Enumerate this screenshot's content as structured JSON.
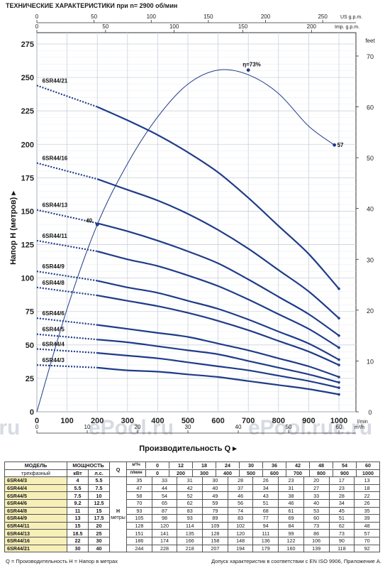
{
  "title": "ТЕХНИЧЕСКИЕ ХАРАКТЕРИСТИКИ при n= 2900 об/мин",
  "chart_data": {
    "type": "line",
    "ylabel": "Напор H (метров)",
    "xlabel": "Производительность Q",
    "y_left": {
      "min": 0,
      "max": 275,
      "ticks": [
        0,
        25,
        50,
        75,
        100,
        125,
        150,
        175,
        200,
        225,
        250,
        275
      ]
    },
    "y_right": {
      "unit": "feet",
      "ticks": [
        0,
        10,
        20,
        30,
        40,
        50,
        60,
        70
      ]
    },
    "x_lmin": {
      "unit": "l/min",
      "min": 0,
      "max": 1000,
      "ticks": [
        0,
        100,
        200,
        300,
        400,
        500,
        600,
        700,
        800,
        900,
        1000
      ]
    },
    "x_m3h": {
      "unit": "m³/h",
      "ticks": [
        0,
        10,
        20,
        30,
        40,
        50,
        60
      ]
    },
    "x_us": {
      "unit": "US g.p.m.",
      "ticks": [
        0,
        50,
        100,
        150,
        200,
        250
      ]
    },
    "x_imp": {
      "unit": "Imp. g.p.m.",
      "ticks": [
        0,
        50,
        100,
        150,
        200
      ]
    },
    "q_points": [
      0,
      200,
      300,
      400,
      500,
      600,
      700,
      800,
      900,
      1000
    ],
    "series": [
      {
        "name": "6SR44/3",
        "values": [
          35,
          33,
          31,
          30,
          28,
          26,
          23,
          20,
          17,
          13
        ]
      },
      {
        "name": "6SR44/4",
        "values": [
          47,
          44,
          42,
          40,
          37,
          34,
          31,
          27,
          23,
          18
        ]
      },
      {
        "name": "6SR44/5",
        "values": [
          58,
          54,
          52,
          49,
          46,
          43,
          38,
          33,
          28,
          22
        ]
      },
      {
        "name": "6SR44/6",
        "values": [
          70,
          65,
          62,
          59,
          56,
          51,
          46,
          40,
          34,
          26
        ]
      },
      {
        "name": "6SR44/8",
        "values": [
          93,
          87,
          83,
          79,
          74,
          68,
          61,
          53,
          45,
          35
        ]
      },
      {
        "name": "6SR44/9",
        "values": [
          105,
          98,
          93,
          89,
          83,
          77,
          69,
          60,
          51,
          39
        ]
      },
      {
        "name": "6SR44/11",
        "values": [
          128,
          120,
          114,
          109,
          102,
          94,
          84,
          73,
          62,
          48
        ]
      },
      {
        "name": "6SR44/13",
        "values": [
          151,
          141,
          135,
          128,
          120,
          111,
          99,
          86,
          73,
          57
        ]
      },
      {
        "name": "6SR44/16",
        "values": [
          186,
          174,
          166,
          158,
          148,
          136,
          122,
          106,
          90,
          70
        ]
      },
      {
        "name": "6SR44/21",
        "values": [
          244,
          228,
          218,
          207,
          194,
          179,
          160,
          139,
          118,
          92
        ]
      }
    ],
    "efficiency": {
      "q": [
        0,
        100,
        200,
        300,
        400,
        500,
        600,
        700,
        800,
        900,
        985
      ],
      "values": [
        0,
        22,
        40,
        53,
        63,
        70,
        73,
        72,
        68,
        61,
        57
      ],
      "peak_label": "η=73%",
      "labels": [
        "40",
        "57"
      ]
    },
    "watermarks": [
      ".ru",
      "ePool.ru",
      "ePool.ru",
      "e.ru"
    ]
  },
  "table": {
    "headers": {
      "model": "МОДЕЛЬ",
      "power": "МОЩНОСТЬ",
      "three_phase": "трехфазный",
      "kw": "кВт",
      "hp": "л.с.",
      "q": "Q",
      "m3h": "м³/ч",
      "lmin": "л/мин",
      "h": "H",
      "meters": "метры"
    },
    "q_m3h": [
      "0",
      "12",
      "18",
      "24",
      "30",
      "36",
      "42",
      "48",
      "54",
      "60"
    ],
    "q_lmin": [
      "0",
      "200",
      "300",
      "400",
      "500",
      "600",
      "700",
      "800",
      "900",
      "1000"
    ],
    "rows": [
      {
        "model": "6SR44/3",
        "kw": "4",
        "hp": "5.5",
        "h": [
          "35",
          "33",
          "31",
          "30",
          "28",
          "26",
          "23",
          "20",
          "17",
          "13"
        ]
      },
      {
        "model": "6SR44/4",
        "kw": "5.5",
        "hp": "7.5",
        "h": [
          "47",
          "44",
          "42",
          "40",
          "37",
          "34",
          "31",
          "27",
          "23",
          "18"
        ]
      },
      {
        "model": "6SR44/5",
        "kw": "7.5",
        "hp": "10",
        "h": [
          "58",
          "54",
          "52",
          "49",
          "46",
          "43",
          "38",
          "33",
          "28",
          "22"
        ]
      },
      {
        "model": "6SR44/6",
        "kw": "9.2",
        "hp": "12.5",
        "h": [
          "70",
          "65",
          "62",
          "59",
          "56",
          "51",
          "46",
          "40",
          "34",
          "26"
        ]
      },
      {
        "model": "6SR44/8",
        "kw": "11",
        "hp": "15",
        "h": [
          "93",
          "87",
          "83",
          "79",
          "74",
          "68",
          "61",
          "53",
          "45",
          "35"
        ]
      },
      {
        "model": "6SR44/9",
        "kw": "13",
        "hp": "17.5",
        "h": [
          "105",
          "98",
          "93",
          "89",
          "83",
          "77",
          "69",
          "60",
          "51",
          "39"
        ]
      },
      {
        "model": "6SR44/11",
        "kw": "15",
        "hp": "20",
        "h": [
          "128",
          "120",
          "114",
          "109",
          "102",
          "94",
          "84",
          "73",
          "62",
          "48"
        ]
      },
      {
        "model": "6SR44/13",
        "kw": "18.5",
        "hp": "25",
        "h": [
          "151",
          "141",
          "135",
          "128",
          "120",
          "111",
          "99",
          "86",
          "73",
          "57"
        ]
      },
      {
        "model": "6SR44/16",
        "kw": "22",
        "hp": "30",
        "h": [
          "186",
          "174",
          "166",
          "158",
          "148",
          "136",
          "122",
          "106",
          "90",
          "70"
        ]
      },
      {
        "model": "6SR44/21",
        "kw": "30",
        "hp": "40",
        "h": [
          "244",
          "228",
          "218",
          "207",
          "194",
          "179",
          "160",
          "139",
          "118",
          "92"
        ]
      }
    ]
  },
  "footer": {
    "left": "Q = Производительность   H = Напор в метрах",
    "right": "Допуск характеристик в соответствии с EN ISO 9906, Приложение A."
  },
  "colors": {
    "curve": "#1f3c88",
    "grid": "#c9d1dc",
    "axis": "#333333",
    "model_bg": "#f7efb8",
    "watermark": "#d6dbe3"
  }
}
